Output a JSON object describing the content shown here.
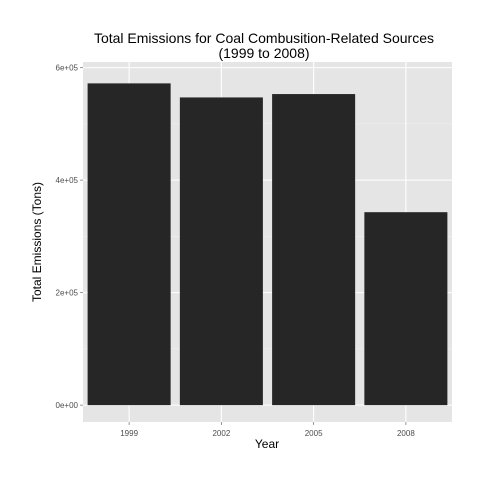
{
  "chart_data": {
    "type": "bar",
    "title": "Total Emissions for Coal Combusition-Related Sources",
    "subtitle": "(1999 to 2008)",
    "xlabel": "Year",
    "ylabel": "Total Emissions (Tons)",
    "categories": [
      "1999",
      "2002",
      "2005",
      "2008"
    ],
    "values": [
      572000,
      547000,
      553000,
      343000
    ],
    "ylim": [
      -30000,
      610000
    ],
    "yticks": [
      0,
      200000,
      400000,
      600000
    ],
    "ytick_labels": [
      "0e+00",
      "2e+05",
      "4e+05",
      "6e+05"
    ],
    "grid": true,
    "legend": "none",
    "bar_color": "#262626",
    "panel_color": "#e5e5e5",
    "grid_color": "#ffffff"
  }
}
